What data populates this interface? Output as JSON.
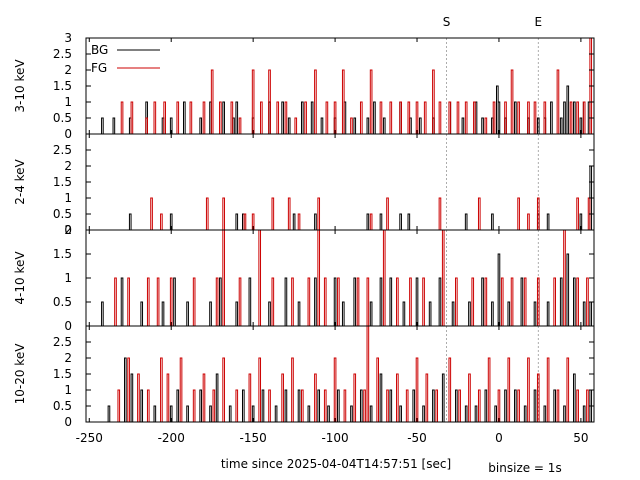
{
  "chart_data": {
    "type": "line",
    "style": "step",
    "xlabel": "time since 2025-04-04T14:57:51 [sec]",
    "binsize_label": "binsize = 1s",
    "xlim": [
      -252,
      58
    ],
    "xticks": [
      -250,
      -200,
      -150,
      -100,
      -50,
      0,
      50
    ],
    "markers": [
      {
        "label": "S",
        "x": -32
      },
      {
        "label": "E",
        "x": 24
      }
    ],
    "legend": {
      "position": "top-left",
      "entries": [
        "BG",
        "FG"
      ]
    },
    "colors": {
      "BG": "#000000",
      "FG": "#cc0000",
      "marker": "#999999",
      "axis": "#000000"
    },
    "panels": [
      {
        "ylabel": "3-10 keV",
        "ylim": [
          0,
          3
        ],
        "yticks": [
          "3",
          "2.5",
          "2",
          "1.5",
          "1",
          "0.5",
          "0"
        ],
        "series": [
          {
            "name": "BG",
            "x": [
              -242,
              -235,
              -225,
              -215,
              -205,
              -200,
              -192,
              -182,
              -176,
              -168,
              -162,
              -160,
              -150,
              -140,
              -132,
              -128,
              -120,
              -114,
              -108,
              -100,
              -94,
              -88,
              -80,
              -76,
              -70,
              -60,
              -54,
              -48,
              -40,
              -30,
              -22,
              -14,
              -10,
              -4,
              -1,
              0,
              4,
              10,
              18,
              24,
              28,
              32,
              38,
              40,
              42,
              46,
              50,
              52,
              55
            ],
            "y": [
              0.5,
              0.5,
              0.5,
              1,
              0.5,
              0.5,
              1,
              0.5,
              1,
              1,
              0.5,
              1,
              0.5,
              1,
              1,
              0.5,
              1,
              1,
              0.5,
              0.5,
              1,
              0.5,
              0.5,
              1,
              0.5,
              1,
              0.5,
              0.5,
              0.5,
              1,
              0.5,
              1,
              0.5,
              0.5,
              1.5,
              1,
              0.5,
              1,
              0.5,
              0.5,
              0.5,
              1,
              0.5,
              1,
              1.5,
              1,
              0.5,
              1,
              1
            ]
          },
          {
            "name": "FG",
            "x": [
              -230,
              -224,
              -215,
              -210,
              -204,
              -196,
              -188,
              -180,
              -175,
              -170,
              -163,
              -158,
              -150,
              -145,
              -140,
              -135,
              -130,
              -124,
              -118,
              -112,
              -105,
              -100,
              -95,
              -90,
              -84,
              -78,
              -72,
              -66,
              -60,
              -55,
              -50,
              -45,
              -40,
              -36,
              -30,
              -25,
              -20,
              -15,
              -8,
              -3,
              4,
              8,
              12,
              18,
              22,
              28,
              36,
              44,
              48,
              52,
              56
            ],
            "y": [
              1,
              1,
              0.5,
              1,
              1,
              1,
              1,
              1,
              2,
              1,
              1,
              0.5,
              2,
              1,
              2,
              1,
              1,
              0.5,
              1,
              2,
              1,
              1,
              2,
              0.5,
              1,
              2,
              1,
              1,
              1,
              1,
              1,
              1,
              2,
              1,
              1,
              1,
              1,
              1,
              0.5,
              1,
              1,
              2,
              1,
              1,
              1,
              1,
              2,
              1,
              1,
              1,
              3
            ]
          }
        ]
      },
      {
        "ylabel": "2-4 keV",
        "ylim": [
          0,
          3
        ],
        "yticks": [
          "2.5",
          "2",
          "1.5",
          "1",
          "0.5",
          "0"
        ],
        "series": [
          {
            "name": "BG",
            "x": [
              -225,
              -200,
              -160,
              -156,
              -125,
              -112,
              -80,
              -72,
              -60,
              -55,
              -20,
              -4,
              24,
              30,
              50,
              56
            ],
            "y": [
              0.5,
              0.5,
              0.5,
              0.5,
              0.5,
              0.5,
              0.5,
              0.5,
              0.5,
              0.5,
              0.5,
              0.5,
              0.5,
              0.5,
              0.5,
              2
            ]
          },
          {
            "name": "FG",
            "x": [
              -212,
              -206,
              -178,
              -168,
              -155,
              -150,
              -138,
              -128,
              -122,
              -110,
              -78,
              -68,
              -36,
              -12,
              12,
              18,
              24,
              48,
              55
            ],
            "y": [
              1,
              0.5,
              1,
              1,
              0.5,
              0.5,
              1,
              1,
              0.5,
              1,
              0.5,
              1,
              1,
              1,
              1,
              0.5,
              1,
              1,
              1
            ]
          }
        ]
      },
      {
        "ylabel": "4-10 keV",
        "ylim": [
          0,
          2
        ],
        "yticks": [
          "2",
          "1.5",
          "1",
          "0.5",
          "0"
        ],
        "series": [
          {
            "name": "BG",
            "x": [
              -242,
              -230,
              -218,
              -205,
              -198,
              -190,
              -176,
              -170,
              -160,
              -152,
              -140,
              -130,
              -122,
              -112,
              -100,
              -95,
              -88,
              -78,
              -72,
              -66,
              -58,
              -50,
              -42,
              -36,
              -28,
              -18,
              -10,
              -4,
              0,
              6,
              14,
              22,
              30,
              38,
              42,
              46,
              52,
              56
            ],
            "y": [
              0.5,
              1,
              0.5,
              0.5,
              1,
              0.5,
              0.5,
              1,
              0.5,
              1,
              0.5,
              1,
              0.5,
              1,
              1,
              0.5,
              1,
              0.5,
              1,
              1,
              0.5,
              1,
              0.5,
              1,
              0.5,
              0.5,
              1,
              0.5,
              1.5,
              0.5,
              1,
              0.5,
              0.5,
              1,
              1.5,
              1,
              0.5,
              0.5
            ]
          },
          {
            "name": "FG",
            "x": [
              -234,
              -226,
              -214,
              -208,
              -200,
              -186,
              -172,
              -168,
              -158,
              -146,
              -138,
              -126,
              -116,
              -110,
              -106,
              -98,
              -86,
              -80,
              -70,
              -62,
              -54,
              -46,
              -34,
              -26,
              -16,
              -8,
              2,
              8,
              16,
              24,
              34,
              40,
              48,
              54
            ],
            "y": [
              1,
              1,
              1,
              1,
              1,
              1,
              1,
              2,
              1,
              2,
              1,
              1,
              1,
              2,
              1,
              1,
              1,
              1,
              2,
              1,
              1,
              1,
              2,
              1,
              1,
              1,
              1,
              1,
              1,
              1,
              1,
              2,
              1,
              1
            ]
          }
        ]
      },
      {
        "ylabel": "10-20 keV",
        "ylim": [
          0,
          3
        ],
        "yticks": [
          "2.5",
          "2",
          "1.5",
          "1",
          "0.5",
          "0"
        ],
        "series": [
          {
            "name": "BG",
            "x": [
              -238,
              -228,
              -224,
              -218,
              -210,
              -200,
              -196,
              -190,
              -182,
              -176,
              -172,
              -164,
              -156,
              -150,
              -144,
              -136,
              -130,
              -122,
              -116,
              -110,
              -104,
              -98,
              -90,
              -84,
              -78,
              -72,
              -66,
              -60,
              -52,
              -46,
              -40,
              -34,
              -26,
              -20,
              -14,
              -8,
              -2,
              4,
              10,
              16,
              22,
              28,
              34,
              40,
              46,
              52,
              56
            ],
            "y": [
              0.5,
              2,
              1.5,
              1,
              0.5,
              0.5,
              1,
              0.5,
              1,
              0.5,
              1.5,
              0.5,
              1,
              0.5,
              1,
              0.5,
              1,
              1,
              0.5,
              1,
              0.5,
              1,
              0.5,
              1,
              0.5,
              1.5,
              1,
              0.5,
              1,
              0.5,
              1,
              1.5,
              1,
              0.5,
              0.5,
              1,
              0.5,
              1,
              1,
              0.5,
              1,
              0.5,
              1,
              0.5,
              1.5,
              0.5,
              1
            ]
          },
          {
            "name": "FG",
            "x": [
              -232,
              -226,
              -220,
              -214,
              -206,
              -202,
              -194,
              -186,
              -180,
              -174,
              -168,
              -160,
              -152,
              -146,
              -140,
              -132,
              -126,
              -120,
              -112,
              -106,
              -100,
              -94,
              -88,
              -82,
              -80,
              -74,
              -68,
              -62,
              -56,
              -50,
              -44,
              -38,
              -30,
              -24,
              -18,
              -12,
              -6,
              0,
              6,
              12,
              18,
              24,
              30,
              36,
              42,
              48,
              54
            ],
            "y": [
              1,
              2,
              1.5,
              1,
              2,
              1.5,
              2,
              1,
              1.5,
              1,
              2,
              1,
              1.5,
              2,
              1,
              1.5,
              2,
              1,
              1.5,
              1,
              2,
              1,
              1.5,
              1,
              3,
              2,
              1,
              1.5,
              1,
              2,
              1.5,
              1,
              2,
              1,
              1.5,
              1,
              2,
              1,
              2,
              1,
              2,
              1.5,
              2,
              1,
              2,
              1,
              1
            ]
          }
        ]
      }
    ]
  }
}
